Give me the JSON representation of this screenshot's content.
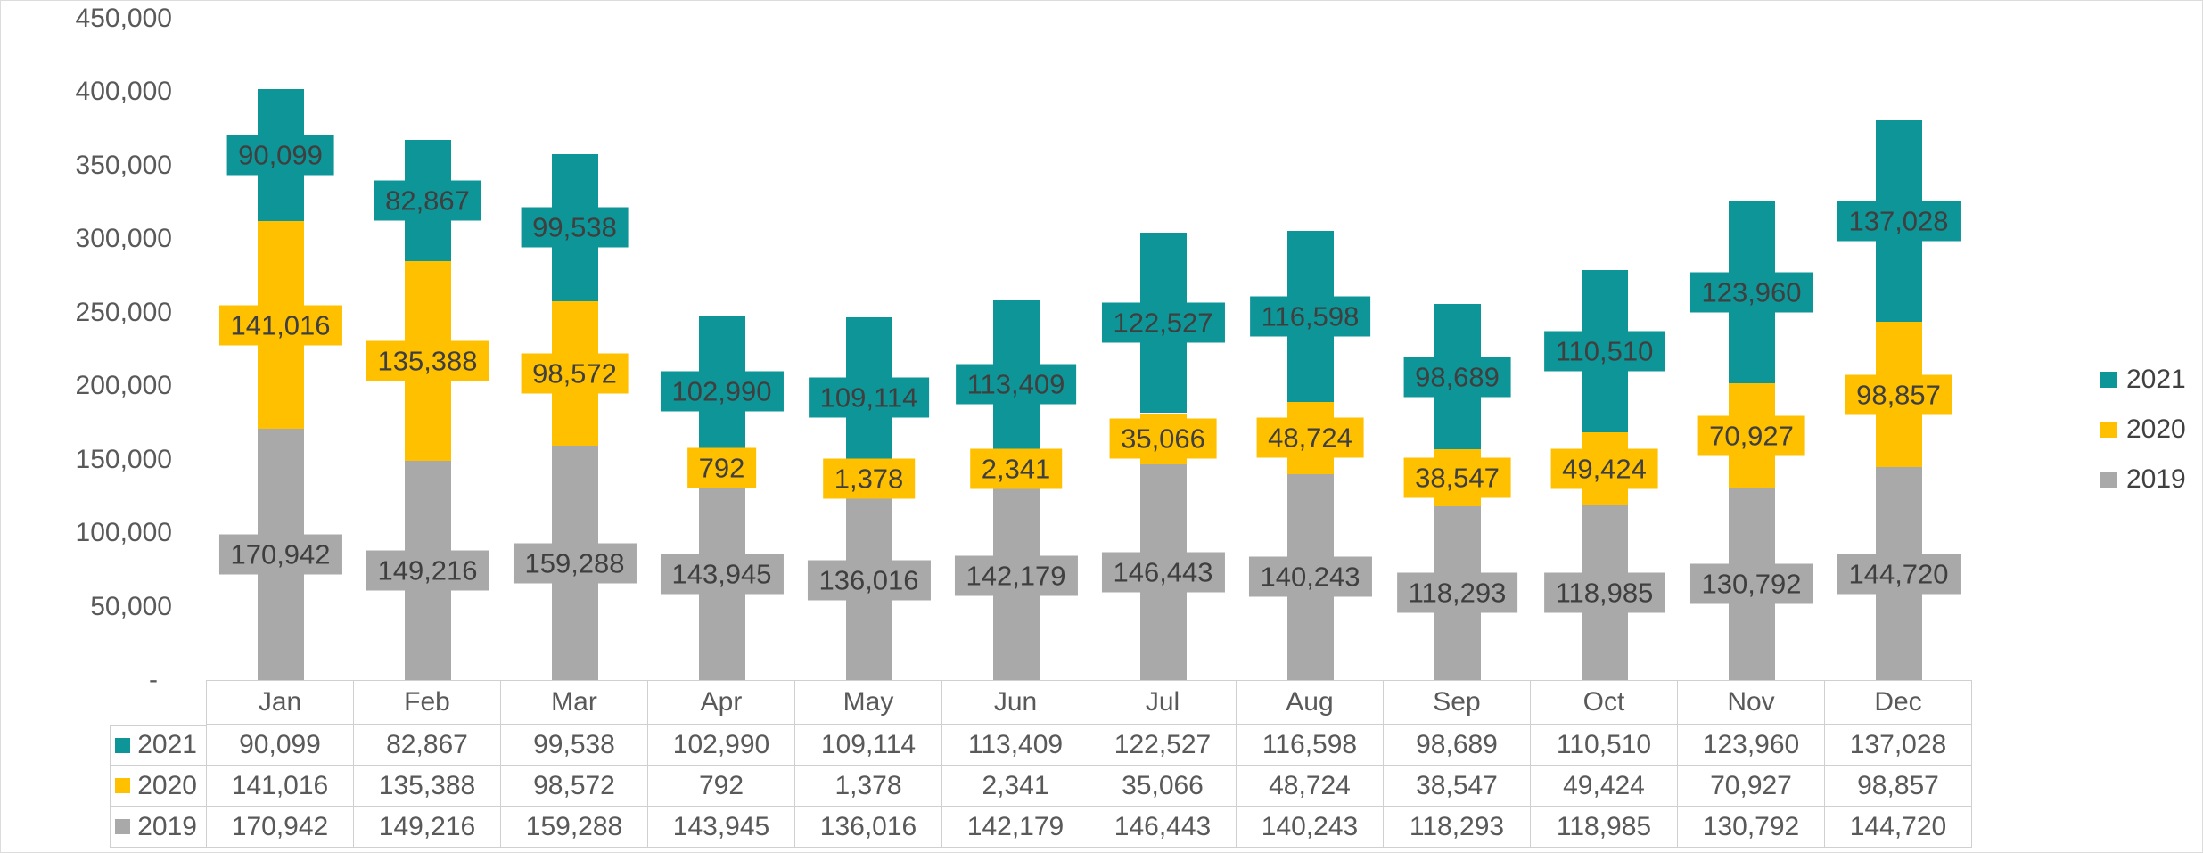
{
  "colors": {
    "series_2021": "#0D9598",
    "series_2020": "#FFC000",
    "series_2019": "#A9A9A9",
    "axis_text": "#595959",
    "data_label_text": "#3F3F3F",
    "legend_text": "#404040",
    "table_border": "#D0D0D0",
    "background": "#FFFFFF"
  },
  "chart_data": {
    "type": "bar",
    "stacked": true,
    "title": "",
    "xlabel": "",
    "ylabel": "",
    "categories": [
      "Jan",
      "Feb",
      "Mar",
      "Apr",
      "May",
      "Jun",
      "Jul",
      "Aug",
      "Sep",
      "Oct",
      "Nov",
      "Dec"
    ],
    "series": [
      {
        "name": "2021",
        "color": "#0D9598",
        "values": [
          90099,
          82867,
          99538,
          102990,
          109114,
          113409,
          122527,
          116598,
          98689,
          110510,
          123960,
          137028
        ]
      },
      {
        "name": "2020",
        "color": "#FFC000",
        "values": [
          141016,
          135388,
          98572,
          792,
          1378,
          2341,
          35066,
          48724,
          38547,
          49424,
          70927,
          98857
        ]
      },
      {
        "name": "2019",
        "color": "#A9A9A9",
        "values": [
          170942,
          149216,
          159288,
          143945,
          136016,
          142179,
          146443,
          140243,
          118293,
          118985,
          130792,
          144720
        ]
      }
    ],
    "stack_order_bottom_to_top": [
      "2019",
      "2020",
      "2021"
    ],
    "y_axis": {
      "min": 0,
      "max": 450000,
      "step": 50000,
      "tick_labels": [
        "450,000",
        "400,000",
        "350,000",
        "300,000",
        "250,000",
        "200,000",
        "150,000",
        "100,000",
        "50,000",
        "-"
      ]
    },
    "gridlines": false,
    "legend": {
      "position": "right",
      "items": [
        "2021",
        "2020",
        "2019"
      ]
    },
    "data_labels": {
      "enabled": true,
      "placement": "center",
      "fill": "series-color"
    },
    "data_table": {
      "shown": true,
      "with_legend_keys": true
    }
  }
}
